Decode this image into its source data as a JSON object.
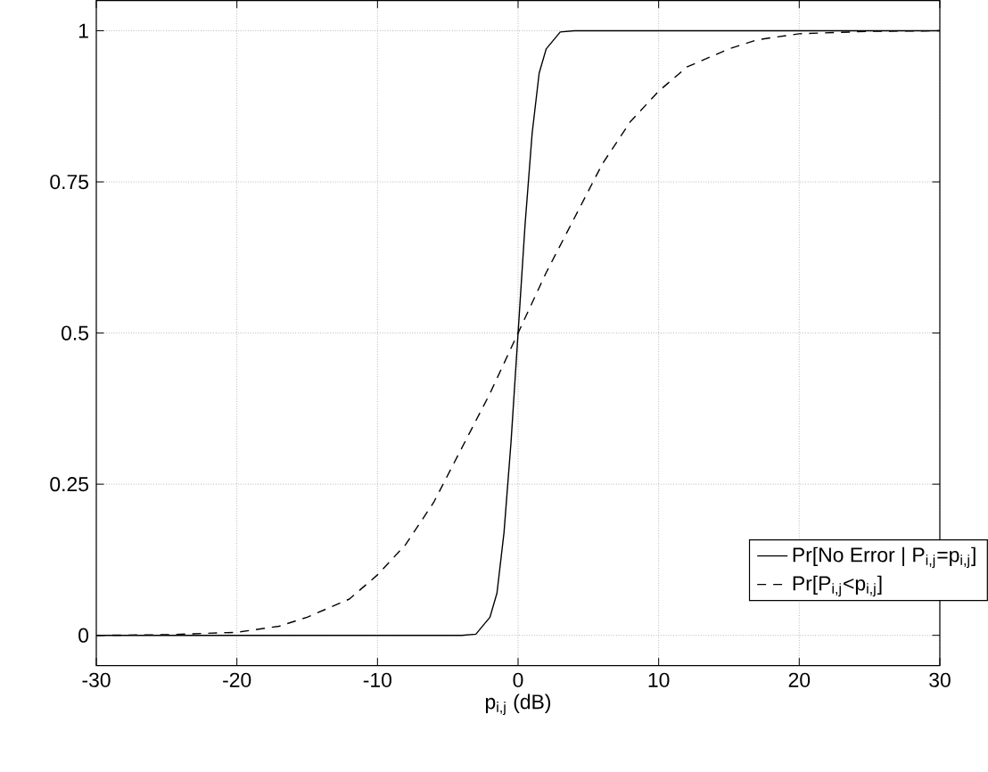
{
  "chart_data": {
    "type": "line",
    "xlabel": "p$_{i,j}$ (dB)",
    "xlim": [
      -30,
      30
    ],
    "ylim": [
      -0.05,
      1.05
    ],
    "xticks": [
      -30,
      -20,
      -10,
      0,
      10,
      20,
      30
    ],
    "yticks": [
      0,
      0.25,
      0.5,
      0.75,
      1
    ],
    "grid": true,
    "legend": "bottom right",
    "series": [
      {
        "name": "Pr[No Error | P$_{i,j}$=p$_{i,j}$]",
        "color": "#000000",
        "line_style": "solid",
        "x": [
          -30,
          -20,
          -10,
          -4,
          -3,
          -2,
          -1.5,
          -1,
          -0.5,
          0,
          0.5,
          1,
          1.5,
          2,
          3,
          4,
          10,
          20,
          30
        ],
        "values": [
          0,
          0,
          0,
          0,
          0.002,
          0.03,
          0.07,
          0.17,
          0.32,
          0.5,
          0.68,
          0.83,
          0.93,
          0.97,
          0.998,
          1,
          1,
          1,
          1
        ]
      },
      {
        "name": "Pr[P$_{i,j}$<p$_{i,j}$]",
        "color": "#000000",
        "line_style": "dashed",
        "x": [
          -30,
          -25,
          -20,
          -17,
          -15,
          -12,
          -10,
          -8,
          -6,
          -4,
          -2,
          0,
          2,
          4,
          6,
          8,
          10,
          12,
          15,
          17,
          20,
          25,
          30
        ],
        "values": [
          0,
          0.001,
          0.005,
          0.015,
          0.03,
          0.06,
          0.1,
          0.15,
          0.22,
          0.31,
          0.4,
          0.5,
          0.6,
          0.69,
          0.78,
          0.85,
          0.9,
          0.94,
          0.97,
          0.985,
          0.995,
          0.999,
          1
        ]
      }
    ]
  }
}
